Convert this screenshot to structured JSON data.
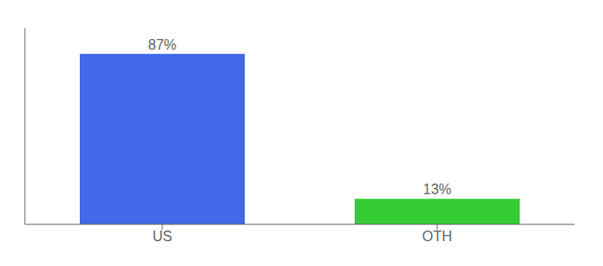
{
  "chart_data": {
    "type": "bar",
    "categories": [
      "US",
      "OTH"
    ],
    "values": [
      87,
      13
    ],
    "value_labels": [
      "87%",
      "13%"
    ],
    "colors": [
      "#4169e8",
      "#33cc33"
    ],
    "ylim": [
      0,
      100
    ],
    "data_labels": true,
    "tick_labels": "x",
    "grid": false
  }
}
